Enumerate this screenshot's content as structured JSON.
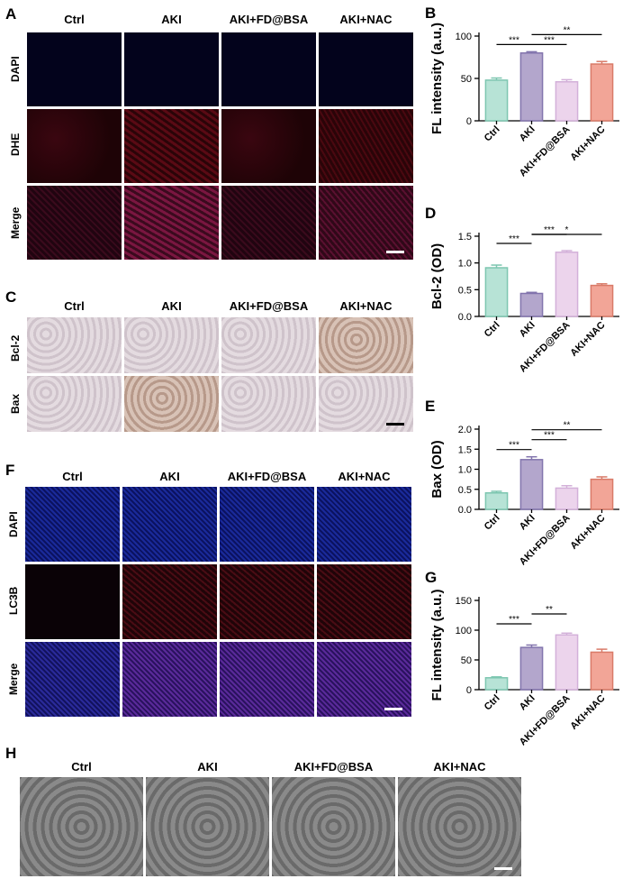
{
  "panels": {
    "A": {
      "letter": "A",
      "columns": [
        "Ctrl",
        "AKI",
        "AKI+FD@BSA",
        "AKI+NAC"
      ],
      "rows": [
        "DAPI",
        "DHE",
        "Merge"
      ]
    },
    "C": {
      "letter": "C",
      "columns": [
        "Ctrl",
        "AKI",
        "AKI+FD@BSA",
        "AKI+NAC"
      ],
      "rows": [
        "Bcl-2",
        "Bax"
      ]
    },
    "F": {
      "letter": "F",
      "columns": [
        "Ctrl",
        "AKI",
        "AKI+FD@BSA",
        "AKI+NAC"
      ],
      "rows": [
        "DAPI",
        "LC3B",
        "Merge"
      ]
    },
    "H": {
      "letter": "H",
      "columns": [
        "Ctrl",
        "AKI",
        "AKI+FD@BSA",
        "AKI+NAC"
      ]
    }
  },
  "colors": {
    "bar_fills": [
      "#b7e3d6",
      "#b3a6cc",
      "#ecd4ec",
      "#f2a597"
    ],
    "bar_strokes": [
      "#7dc6b0",
      "#8274ad",
      "#d3b0d9",
      "#d97a68"
    ]
  },
  "chart_data": [
    {
      "letter": "B",
      "type": "bar",
      "categories": [
        "Ctrl",
        "AKI",
        "AKI+FD@BSA",
        "AKI+NAC"
      ],
      "values": [
        48,
        80,
        46,
        67
      ],
      "errors": [
        2.5,
        1.5,
        2.5,
        3
      ],
      "ylabel": "FL intensity (a.u.)",
      "ylim": [
        0,
        100
      ],
      "yticks": [
        0,
        50,
        100
      ],
      "significance": [
        {
          "from": 0,
          "to": 1,
          "label": "***",
          "level": 0
        },
        {
          "from": 1,
          "to": 2,
          "label": "***",
          "level": 0
        },
        {
          "from": 1,
          "to": 3,
          "label": "**",
          "level": 1
        }
      ]
    },
    {
      "letter": "D",
      "type": "bar",
      "categories": [
        "Ctrl",
        "AKI",
        "AKI+FD@BSA",
        "AKI+NAC"
      ],
      "values": [
        0.91,
        0.43,
        1.2,
        0.58
      ],
      "errors": [
        0.05,
        0.02,
        0.03,
        0.03
      ],
      "ylabel": "Bcl-2  (OD)",
      "ylim": [
        0,
        1.5
      ],
      "yticks": [
        0.0,
        0.5,
        1.0,
        1.5
      ],
      "tick_decimals": 1,
      "significance": [
        {
          "from": 0,
          "to": 1,
          "label": "***",
          "level": 0
        },
        {
          "from": 1,
          "to": 2,
          "label": "***",
          "level": 1
        },
        {
          "from": 1,
          "to": 3,
          "label": "*",
          "level": 2
        }
      ]
    },
    {
      "letter": "E",
      "type": "bar",
      "categories": [
        "Ctrl",
        "AKI",
        "AKI+FD@BSA",
        "AKI+NAC"
      ],
      "values": [
        0.41,
        1.24,
        0.53,
        0.75
      ],
      "errors": [
        0.04,
        0.07,
        0.06,
        0.06
      ],
      "ylabel": "Bax (OD)",
      "ylim": [
        0,
        2.0
      ],
      "yticks": [
        0.0,
        0.5,
        1.0,
        1.5,
        2.0
      ],
      "tick_decimals": 1,
      "significance": [
        {
          "from": 0,
          "to": 1,
          "label": "***",
          "level": 0
        },
        {
          "from": 1,
          "to": 2,
          "label": "***",
          "level": 1
        },
        {
          "from": 1,
          "to": 3,
          "label": "**",
          "level": 2
        }
      ]
    },
    {
      "letter": "G",
      "type": "bar",
      "categories": [
        "Ctrl",
        "AKI",
        "AKI+FD@BSA",
        "AKI+NAC"
      ],
      "values": [
        20,
        71,
        92,
        63
      ],
      "errors": [
        1.5,
        4,
        3,
        5
      ],
      "ylabel": "FL intensity (a.u.)",
      "ylim": [
        0,
        150
      ],
      "yticks": [
        0,
        50,
        100,
        150
      ],
      "significance": [
        {
          "from": 0,
          "to": 1,
          "label": "***",
          "level": 0
        },
        {
          "from": 1,
          "to": 2,
          "label": "**",
          "level": 1
        }
      ]
    }
  ]
}
